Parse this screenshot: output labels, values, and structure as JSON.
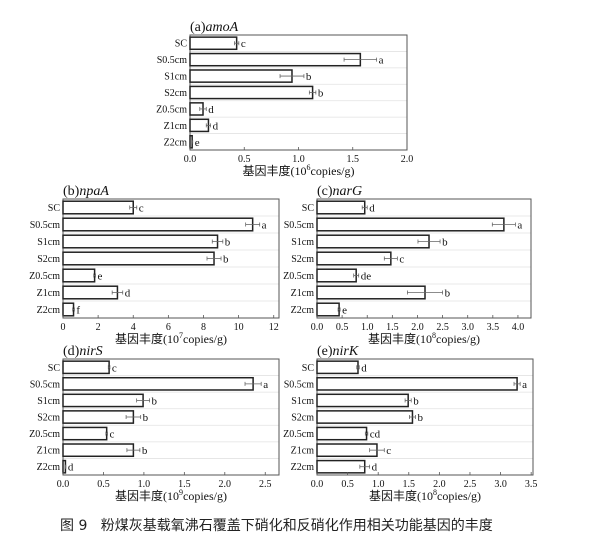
{
  "chart_data": [
    {
      "type": "bar",
      "orientation": "horizontal",
      "title_prefix": "(a)",
      "title_gene": "amoA",
      "categories": [
        "SC",
        "S0.5cm",
        "S1cm",
        "S2cm",
        "Z0.5cm",
        "Z1cm",
        "Z2cm"
      ],
      "values": [
        0.43,
        1.57,
        0.94,
        1.13,
        0.12,
        0.17,
        0.02
      ],
      "errors": [
        0.02,
        0.15,
        0.11,
        0.03,
        0.03,
        0.02,
        0.005
      ],
      "letters": [
        "c",
        "a",
        "b",
        "b",
        "d",
        "d",
        "e"
      ],
      "xlim": [
        0,
        2.0
      ],
      "xticks": [
        "0.0",
        "0.5",
        "1.0",
        "1.5",
        "2.0"
      ],
      "xtick_values": [
        0,
        0.5,
        1.0,
        1.5,
        2.0
      ],
      "xlabel": {
        "prefix": "基因丰度(10",
        "exp": "6",
        "suffix": "copies/g)"
      }
    },
    {
      "type": "bar",
      "orientation": "horizontal",
      "title_prefix": "(b)",
      "title_gene": "npaA",
      "categories": [
        "SC",
        "S0.5cm",
        "S1cm",
        "S2cm",
        "Z0.5cm",
        "Z1cm",
        "Z2cm"
      ],
      "values": [
        4.0,
        10.8,
        8.8,
        8.6,
        1.8,
        3.1,
        0.6
      ],
      "errors": [
        0.2,
        0.4,
        0.3,
        0.4,
        0.05,
        0.3,
        0.05
      ],
      "letters": [
        "c",
        "a",
        "b",
        "b",
        "e",
        "d",
        "f"
      ],
      "xlim": [
        0,
        12.3
      ],
      "xticks": [
        "0",
        "2",
        "4",
        "6",
        "8",
        "10",
        "12"
      ],
      "xtick_values": [
        0,
        2,
        4,
        6,
        8,
        10,
        12
      ],
      "xlabel": {
        "prefix": "基因丰度(10",
        "exp": "7",
        "suffix": "copies/g)"
      }
    },
    {
      "type": "bar",
      "orientation": "horizontal",
      "title_prefix": "(c)",
      "title_gene": "narG",
      "categories": [
        "SC",
        "S0.5cm",
        "S1cm",
        "S2cm",
        "Z0.5cm",
        "Z1cm",
        "Z2cm"
      ],
      "values": [
        0.95,
        3.72,
        2.23,
        1.47,
        0.78,
        2.15,
        0.44
      ],
      "errors": [
        0.05,
        0.23,
        0.22,
        0.13,
        0.05,
        0.35,
        0.02
      ],
      "letters": [
        "d",
        "a",
        "b",
        "c",
        "de",
        "b",
        "e"
      ],
      "xlim": [
        0,
        4.26
      ],
      "xticks": [
        "0.0",
        "0.5",
        "1.0",
        "1.5",
        "2.0",
        "2.5",
        "3.0",
        "3.5",
        "4.0"
      ],
      "xtick_values": [
        0,
        0.5,
        1.0,
        1.5,
        2.0,
        2.5,
        3.0,
        3.5,
        4.0
      ],
      "xlabel": {
        "prefix": "基因丰度(10",
        "exp": "8",
        "suffix": "copies/g)"
      }
    },
    {
      "type": "bar",
      "orientation": "horizontal",
      "title_prefix": "(d)",
      "title_gene": "nirS",
      "categories": [
        "SC",
        "S0.5cm",
        "S1cm",
        "S2cm",
        "Z0.5cm",
        "Z1cm",
        "Z2cm"
      ],
      "values": [
        0.57,
        2.35,
        0.99,
        0.87,
        0.54,
        0.87,
        0.03
      ],
      "errors": [
        0.01,
        0.1,
        0.08,
        0.09,
        0.01,
        0.08,
        0.005
      ],
      "letters": [
        "c",
        "a",
        "b",
        "b",
        "c",
        "b",
        "d"
      ],
      "xlim": [
        0,
        2.67
      ],
      "xticks": [
        "0.0",
        "0.5",
        "1.0",
        "1.5",
        "2.0",
        "2.5"
      ],
      "xtick_values": [
        0,
        0.5,
        1.0,
        1.5,
        2.0,
        2.5
      ],
      "xlabel": {
        "prefix": "基因丰度(10",
        "exp": "9",
        "suffix": "copies/g)"
      }
    },
    {
      "type": "bar",
      "orientation": "horizontal",
      "title_prefix": "(e)",
      "title_gene": "nirK",
      "categories": [
        "SC",
        "S0.5cm",
        "S1cm",
        "S2cm",
        "Z0.5cm",
        "Z1cm",
        "Z2cm"
      ],
      "values": [
        0.67,
        3.27,
        1.49,
        1.56,
        0.81,
        0.98,
        0.78
      ],
      "errors": [
        0.02,
        0.05,
        0.05,
        0.05,
        0.02,
        0.12,
        0.08
      ],
      "letters": [
        "d",
        "a",
        "b",
        "b",
        "cd",
        "c",
        "d"
      ],
      "xlim": [
        0,
        3.53
      ],
      "xticks": [
        "0.0",
        "0.5",
        "1.0",
        "1.5",
        "2.0",
        "2.5",
        "3.0",
        "3.5"
      ],
      "xtick_values": [
        0,
        0.5,
        1.0,
        1.5,
        2.0,
        2.5,
        3.0,
        3.5
      ],
      "xlabel": {
        "prefix": "基因丰度(10",
        "exp": "8",
        "suffix": "copies/g)"
      }
    }
  ],
  "caption": "图 9   粉煤灰基载氧沸石覆盖下硝化和反硝化作用相关功能基因的丰度"
}
